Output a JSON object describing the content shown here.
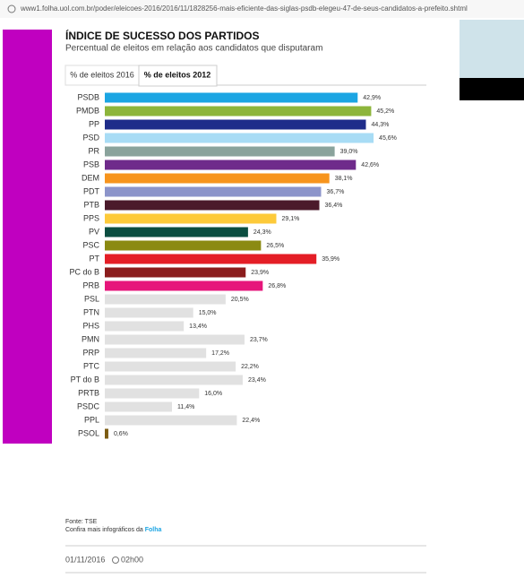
{
  "url": "www1.folha.uol.com.br/poder/eleicoes-2016/2016/11/1828256-mais-eficiente-das-siglas-psdb-elegeu-47-de-seus-candidatos-a-prefeito.shtml",
  "tabs": [
    "% de eleitos 2016",
    "% de eleitos 2012"
  ],
  "chart_data": {
    "type": "bar",
    "title": "ÍNDICE DE SUCESSO DOS PARTIDOS",
    "subtitle": "Percentual de eleitos em relação aos candidatos que disputaram",
    "categories": [
      "PSDB",
      "PMDB",
      "PP",
      "PSD",
      "PR",
      "PSB",
      "DEM",
      "PDT",
      "PTB",
      "PPS",
      "PV",
      "PSC",
      "PT",
      "PC do B",
      "PRB",
      "PSL",
      "PTN",
      "PHS",
      "PMN",
      "PRP",
      "PTC",
      "PT do B",
      "PRTB",
      "PSDC",
      "PPL",
      "PSOL"
    ],
    "values": [
      42.9,
      45.2,
      44.3,
      45.6,
      39.0,
      42.6,
      38.1,
      36.7,
      36.4,
      29.1,
      24.3,
      26.5,
      35.9,
      23.9,
      26.8,
      20.5,
      15.0,
      13.4,
      23.7,
      17.2,
      22.2,
      23.4,
      16.0,
      11.4,
      22.4,
      0.6
    ],
    "value_labels": [
      "42,9%",
      "45,2%",
      "44,3%",
      "45,6%",
      "39,0%",
      "42,6%",
      "38,1%",
      "36,7%",
      "36,4%",
      "29,1%",
      "24,3%",
      "26,5%",
      "35,9%",
      "23,9%",
      "26,8%",
      "20,5%",
      "15,0%",
      "13,4%",
      "23,7%",
      "17,2%",
      "22,2%",
      "23,4%",
      "16,0%",
      "11,4%",
      "22,4%",
      "0,6%"
    ],
    "colors": [
      "#1ba5e3",
      "#8db53b",
      "#1f2d8a",
      "#a8dcf5",
      "#8aa39c",
      "#6f2b8b",
      "#f7941d",
      "#8c94ca",
      "#4b1a2b",
      "#fdca3a",
      "#0b4e41",
      "#8b8a12",
      "#e41e26",
      "#8b1d1d",
      "#e6167b",
      "#e1e1e1",
      "#e1e1e1",
      "#e1e1e1",
      "#e1e1e1",
      "#e1e1e1",
      "#e1e1e1",
      "#e1e1e1",
      "#e1e1e1",
      "#e1e1e1",
      "#e1e1e1",
      "#7b5b12"
    ]
  },
  "footer": {
    "source": "Fonte: TSE",
    "more": "Confira mais infográficos da",
    "brand": "Folha",
    "date": "01/11/2016",
    "time": "02h00"
  }
}
